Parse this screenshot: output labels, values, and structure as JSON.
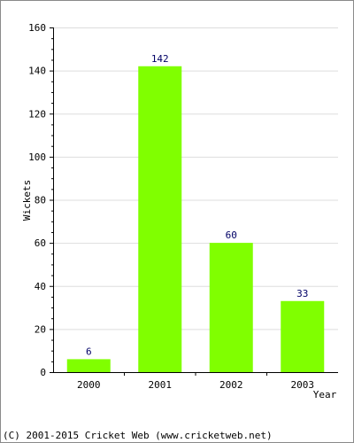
{
  "chart_data": {
    "type": "bar",
    "categories": [
      "2000",
      "2001",
      "2002",
      "2003"
    ],
    "values": [
      6,
      142,
      60,
      33
    ],
    "value_labels": [
      "6",
      "142",
      "60",
      "33"
    ],
    "title": "",
    "xlabel": "Year",
    "ylabel": "Wickets",
    "ylim": [
      0,
      160
    ],
    "yticks": [
      0,
      20,
      40,
      60,
      80,
      100,
      120,
      140,
      160
    ],
    "ytick_labels": [
      "0",
      "20",
      "40",
      "60",
      "80",
      "100",
      "120",
      "140",
      "160"
    ],
    "grid": true,
    "bar_color": "#80ff00",
    "value_label_color": "#000066",
    "grid_color": "#dddddd"
  },
  "footer": {
    "copyright": "(C) 2001-2015 Cricket Web (www.cricketweb.net)"
  }
}
